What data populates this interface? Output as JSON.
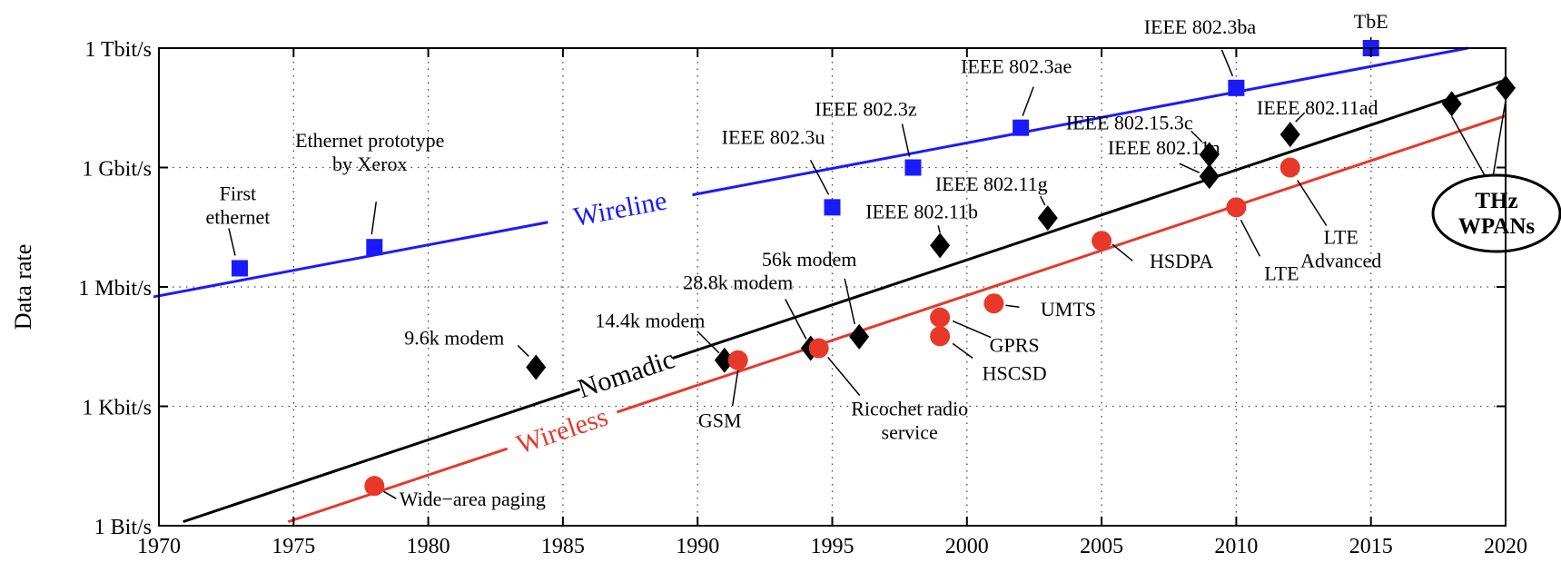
{
  "chart_data": {
    "type": "scatter",
    "title": "",
    "xlabel": "",
    "ylabel": "Data rate",
    "xlim": [
      1970,
      2020
    ],
    "ylim_log10_bps": [
      0,
      12
    ],
    "y_scale": "log",
    "grid": true,
    "x_ticks": [
      1970,
      1975,
      1980,
      1985,
      1990,
      1995,
      2000,
      2005,
      2010,
      2015,
      2020
    ],
    "x_tick_labels": [
      "1970",
      "1975",
      "1980",
      "1985",
      "1990",
      "1995",
      "2000",
      "2005",
      "2010",
      "2015",
      "2020"
    ],
    "y_ticks_log10_bps": [
      0,
      3,
      6,
      9,
      12
    ],
    "y_tick_labels": [
      "1 Bit/s",
      "1 Kbit/s",
      "1 Mbit/s",
      "1 Gbit/s",
      "1 Tbit/s"
    ],
    "series": [
      {
        "name": "Wireline",
        "color": "#1a1aff",
        "marker": "square",
        "trend": {
          "x": [
            1969.8,
            2018.6
          ],
          "log10_bps": [
            5.75,
            12.0
          ]
        },
        "points": [
          {
            "label": "First ethernet",
            "year": 1973,
            "rate_bps": 2940000
          },
          {
            "label": "Ethernet prototype by Xerox",
            "year": 1978,
            "rate_bps": 10000000
          },
          {
            "label": "IEEE 802.3u",
            "year": 1995,
            "rate_bps": 100000000
          },
          {
            "label": "IEEE 802.3z",
            "year": 1998,
            "rate_bps": 1000000000
          },
          {
            "label": "IEEE 802.3ae",
            "year": 2002,
            "rate_bps": 10000000000
          },
          {
            "label": "IEEE 802.3ba",
            "year": 2010,
            "rate_bps": 100000000000
          },
          {
            "label": "TbE",
            "year": 2015,
            "rate_bps": 1000000000000
          }
        ]
      },
      {
        "name": "Nomadic",
        "color": "#000000",
        "marker": "diamond",
        "trend": {
          "x": [
            1970.9,
            2020
          ],
          "log10_bps": [
            0.1,
            11.2
          ]
        },
        "points": [
          {
            "label": "9.6k modem",
            "year": 1984,
            "rate_bps": 9600
          },
          {
            "label": "14.4k modem",
            "year": 1991,
            "rate_bps": 14400
          },
          {
            "label": "28.8k modem",
            "year": 1994.2,
            "rate_bps": 28800
          },
          {
            "label": "56k modem",
            "year": 1996,
            "rate_bps": 56000
          },
          {
            "label": "IEEE 802.11b",
            "year": 1999,
            "rate_bps": 11000000
          },
          {
            "label": "IEEE 802.11g",
            "year": 2003,
            "rate_bps": 54000000
          },
          {
            "label": "IEEE 802.11n",
            "year": 2009,
            "rate_bps": 600000000
          },
          {
            "label": "IEEE 802.15.3c",
            "year": 2009,
            "rate_bps": 2100000000
          },
          {
            "label": "IEEE 802.11ad",
            "year": 2012,
            "rate_bps": 6750000000
          },
          {
            "label": "THz WPANs",
            "year": 2018,
            "rate_bps": 40000000000
          },
          {
            "label": "THz WPANs",
            "year": 2020,
            "rate_bps": 100000000000
          }
        ]
      },
      {
        "name": "Wireless",
        "color": "#e8382a",
        "marker": "circle",
        "trend": {
          "x": [
            1974.8,
            2020
          ],
          "log10_bps": [
            0.1,
            10.3
          ]
        },
        "points": [
          {
            "label": "Wide-area paging",
            "year": 1978,
            "rate_bps": 10
          },
          {
            "label": "GSM",
            "year": 1991.5,
            "rate_bps": 14400
          },
          {
            "label": "Ricochet radio service",
            "year": 1994.5,
            "rate_bps": 28800
          },
          {
            "label": "HSCSD",
            "year": 1999,
            "rate_bps": 57600
          },
          {
            "label": "GPRS",
            "year": 1999,
            "rate_bps": 171000
          },
          {
            "label": "UMTS",
            "year": 2001,
            "rate_bps": 384000
          },
          {
            "label": "HSDPA",
            "year": 2005,
            "rate_bps": 14400000
          },
          {
            "label": "LTE",
            "year": 2010,
            "rate_bps": 100000000
          },
          {
            "label": "LTE Advanced",
            "year": 2012,
            "rate_bps": 1000000000
          }
        ]
      }
    ],
    "annotations": [
      {
        "id": "first-ethernet",
        "lines": [
          "First",
          "ethernet"
        ],
        "series": 0,
        "point": 0
      },
      {
        "id": "xerox",
        "lines": [
          "Ethernet prototype",
          "by Xerox"
        ],
        "series": 0,
        "point": 1
      },
      {
        "id": "ieee-802-3u",
        "lines": [
          "IEEE 802.3u"
        ],
        "series": 0,
        "point": 2
      },
      {
        "id": "ieee-802-3z",
        "lines": [
          "IEEE 802.3z"
        ],
        "series": 0,
        "point": 3
      },
      {
        "id": "ieee-802-3ae",
        "lines": [
          "IEEE 802.3ae"
        ],
        "series": 0,
        "point": 4
      },
      {
        "id": "ieee-802-3ba",
        "lines": [
          "IEEE 802.3ba"
        ],
        "series": 0,
        "point": 5
      },
      {
        "id": "tbe",
        "lines": [
          "TbE"
        ],
        "series": 0,
        "point": 6
      },
      {
        "id": "modem-9-6k",
        "lines": [
          "9.6k modem"
        ],
        "series": 1,
        "point": 0
      },
      {
        "id": "modem-14-4k",
        "lines": [
          "14.4k modem"
        ],
        "series": 1,
        "point": 1
      },
      {
        "id": "modem-28-8k",
        "lines": [
          "28.8k modem"
        ],
        "series": 1,
        "point": 2
      },
      {
        "id": "modem-56k",
        "lines": [
          "56k modem"
        ],
        "series": 1,
        "point": 3
      },
      {
        "id": "ieee-802-11b",
        "lines": [
          "IEEE 802.11b"
        ],
        "series": 1,
        "point": 4
      },
      {
        "id": "ieee-802-11g",
        "lines": [
          "IEEE 802.11g"
        ],
        "series": 1,
        "point": 5
      },
      {
        "id": "ieee-802-11n",
        "lines": [
          "IEEE 802.11n"
        ],
        "series": 1,
        "point": 6
      },
      {
        "id": "ieee-802-15-3c",
        "lines": [
          "IEEE 802.15.3c"
        ],
        "series": 1,
        "point": 7
      },
      {
        "id": "ieee-802-11ad",
        "lines": [
          "IEEE 802.11ad"
        ],
        "series": 1,
        "point": 8
      },
      {
        "id": "wide-area-paging",
        "lines": [
          "Wide−area paging"
        ],
        "series": 2,
        "point": 0
      },
      {
        "id": "gsm",
        "lines": [
          "GSM"
        ],
        "series": 2,
        "point": 1
      },
      {
        "id": "ricochet",
        "lines": [
          "Ricochet radio",
          "service"
        ],
        "series": 2,
        "point": 2
      },
      {
        "id": "hscsd",
        "lines": [
          "HSCSD"
        ],
        "series": 2,
        "point": 3
      },
      {
        "id": "gprs",
        "lines": [
          "GPRS"
        ],
        "series": 2,
        "point": 4
      },
      {
        "id": "umts",
        "lines": [
          "UMTS"
        ],
        "series": 2,
        "point": 5
      },
      {
        "id": "hsdpa",
        "lines": [
          "HSDPA"
        ],
        "series": 2,
        "point": 6
      },
      {
        "id": "lte",
        "lines": [
          "LTE"
        ],
        "series": 2,
        "point": 7
      },
      {
        "id": "lte-advanced",
        "lines": [
          "LTE",
          "Advanced"
        ],
        "series": 2,
        "point": 8
      }
    ],
    "callout": {
      "lines": [
        "THz",
        "WPANs"
      ],
      "targets": [
        [
          1,
          9
        ],
        [
          1,
          10
        ]
      ]
    }
  }
}
